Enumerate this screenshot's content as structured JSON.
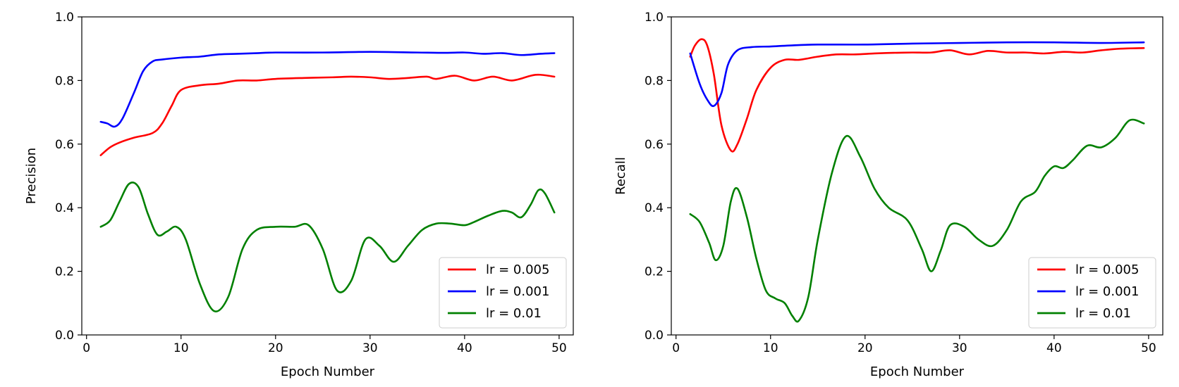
{
  "chart_data": [
    {
      "type": "line",
      "title": "",
      "xlabel": "Epoch Number",
      "ylabel": "Precision",
      "xlim": [
        -0.5,
        51.5
      ],
      "ylim": [
        0.0,
        1.0
      ],
      "xticks": [
        0,
        10,
        20,
        30,
        40,
        50
      ],
      "yticks": [
        0.0,
        0.2,
        0.4,
        0.6,
        0.8,
        1.0
      ],
      "xtick_labels": [
        "0",
        "10",
        "20",
        "30",
        "40",
        "50"
      ],
      "ytick_labels": [
        "0.0",
        "0.2",
        "0.4",
        "0.6",
        "0.8",
        "1.0"
      ],
      "grid": false,
      "legend_position": "lower-right",
      "series": [
        {
          "name": "lr = 0.005",
          "color": "#ff0000",
          "x": [
            1.5,
            2.5,
            3.5,
            5,
            7,
            8,
            9,
            10,
            12,
            14,
            16,
            18,
            20,
            23,
            26,
            28,
            30,
            32,
            34,
            36,
            37,
            39,
            41,
            43,
            45,
            47,
            48,
            49.5
          ],
          "y": [
            0.565,
            0.59,
            0.605,
            0.62,
            0.635,
            0.665,
            0.72,
            0.77,
            0.785,
            0.79,
            0.8,
            0.8,
            0.805,
            0.808,
            0.81,
            0.812,
            0.81,
            0.805,
            0.808,
            0.812,
            0.805,
            0.815,
            0.8,
            0.812,
            0.8,
            0.815,
            0.818,
            0.812
          ]
        },
        {
          "name": "lr = 0.001",
          "color": "#0000ff",
          "x": [
            1.5,
            2.2,
            3,
            3.8,
            5,
            6,
            7,
            8,
            10,
            12,
            14,
            16,
            18,
            20,
            25,
            30,
            35,
            38,
            40,
            42,
            44,
            46,
            48,
            49.5
          ],
          "y": [
            0.67,
            0.665,
            0.655,
            0.68,
            0.76,
            0.83,
            0.86,
            0.866,
            0.872,
            0.875,
            0.882,
            0.884,
            0.886,
            0.888,
            0.888,
            0.89,
            0.888,
            0.887,
            0.888,
            0.884,
            0.886,
            0.88,
            0.884,
            0.886
          ]
        },
        {
          "name": "lr = 0.01",
          "color": "#008000",
          "x": [
            1.5,
            2.5,
            3.5,
            4.5,
            5.5,
            6.5,
            7.5,
            8.5,
            9.5,
            10.5,
            12,
            13.5,
            15,
            16.5,
            18,
            20,
            22,
            23.5,
            25,
            26.5,
            28,
            29.5,
            31,
            32.5,
            34,
            35.5,
            37,
            38.5,
            40,
            41,
            42.5,
            44,
            45,
            46,
            47,
            47.8,
            48.5,
            49.5
          ],
          "y": [
            0.34,
            0.36,
            0.42,
            0.475,
            0.465,
            0.38,
            0.315,
            0.325,
            0.34,
            0.3,
            0.16,
            0.075,
            0.12,
            0.27,
            0.33,
            0.34,
            0.34,
            0.345,
            0.27,
            0.14,
            0.17,
            0.3,
            0.28,
            0.23,
            0.28,
            0.33,
            0.35,
            0.35,
            0.345,
            0.355,
            0.375,
            0.39,
            0.385,
            0.37,
            0.41,
            0.455,
            0.445,
            0.385
          ]
        }
      ]
    },
    {
      "type": "line",
      "title": "",
      "xlabel": "Epoch Number",
      "ylabel": "Recall",
      "xlim": [
        -0.5,
        51.5
      ],
      "ylim": [
        0.0,
        1.0
      ],
      "xticks": [
        0,
        10,
        20,
        30,
        40,
        50
      ],
      "yticks": [
        0.0,
        0.2,
        0.4,
        0.6,
        0.8,
        1.0
      ],
      "xtick_labels": [
        "0",
        "10",
        "20",
        "30",
        "40",
        "50"
      ],
      "ytick_labels": [
        "0.0",
        "0.2",
        "0.4",
        "0.6",
        "0.8",
        "1.0"
      ],
      "grid": false,
      "legend_position": "lower-right",
      "series": [
        {
          "name": "lr = 0.005",
          "color": "#ff0000",
          "x": [
            1.5,
            2,
            2.7,
            3.3,
            4,
            4.8,
            5.8,
            6.5,
            7.5,
            8.5,
            10,
            11.5,
            13,
            15,
            17,
            19,
            21,
            23,
            25,
            27,
            29,
            31,
            33,
            35,
            37,
            39,
            41,
            43,
            45,
            47,
            49.5
          ],
          "y": [
            0.875,
            0.91,
            0.93,
            0.91,
            0.82,
            0.66,
            0.58,
            0.6,
            0.68,
            0.77,
            0.84,
            0.865,
            0.865,
            0.875,
            0.882,
            0.882,
            0.885,
            0.887,
            0.888,
            0.888,
            0.895,
            0.882,
            0.893,
            0.888,
            0.888,
            0.885,
            0.89,
            0.888,
            0.895,
            0.9,
            0.902
          ]
        },
        {
          "name": "lr = 0.001",
          "color": "#0000ff",
          "x": [
            1.5,
            2.5,
            3.3,
            4,
            4.8,
            5.5,
            6.5,
            8,
            10,
            12,
            15,
            20,
            25,
            30,
            35,
            40,
            45,
            49.5
          ],
          "y": [
            0.885,
            0.79,
            0.74,
            0.72,
            0.76,
            0.85,
            0.895,
            0.905,
            0.907,
            0.91,
            0.913,
            0.913,
            0.916,
            0.918,
            0.92,
            0.92,
            0.918,
            0.92
          ]
        },
        {
          "name": "lr = 0.01",
          "color": "#008000",
          "x": [
            1.5,
            2.5,
            3.5,
            4.2,
            5,
            5.8,
            6.5,
            7.5,
            8.5,
            9.5,
            10.5,
            11.5,
            12.3,
            13,
            14,
            15,
            16.5,
            18,
            19.5,
            21,
            22.5,
            24.5,
            26,
            27,
            28,
            29,
            30.5,
            32,
            33.5,
            35,
            36.5,
            38,
            39,
            40,
            41,
            42,
            43.5,
            45,
            46.5,
            48,
            49.5
          ],
          "y": [
            0.38,
            0.355,
            0.29,
            0.235,
            0.28,
            0.42,
            0.46,
            0.37,
            0.24,
            0.14,
            0.115,
            0.1,
            0.06,
            0.045,
            0.12,
            0.3,
            0.51,
            0.625,
            0.56,
            0.46,
            0.4,
            0.36,
            0.27,
            0.2,
            0.265,
            0.345,
            0.34,
            0.3,
            0.28,
            0.33,
            0.42,
            0.45,
            0.5,
            0.53,
            0.525,
            0.55,
            0.595,
            0.59,
            0.62,
            0.675,
            0.665
          ]
        }
      ]
    }
  ]
}
